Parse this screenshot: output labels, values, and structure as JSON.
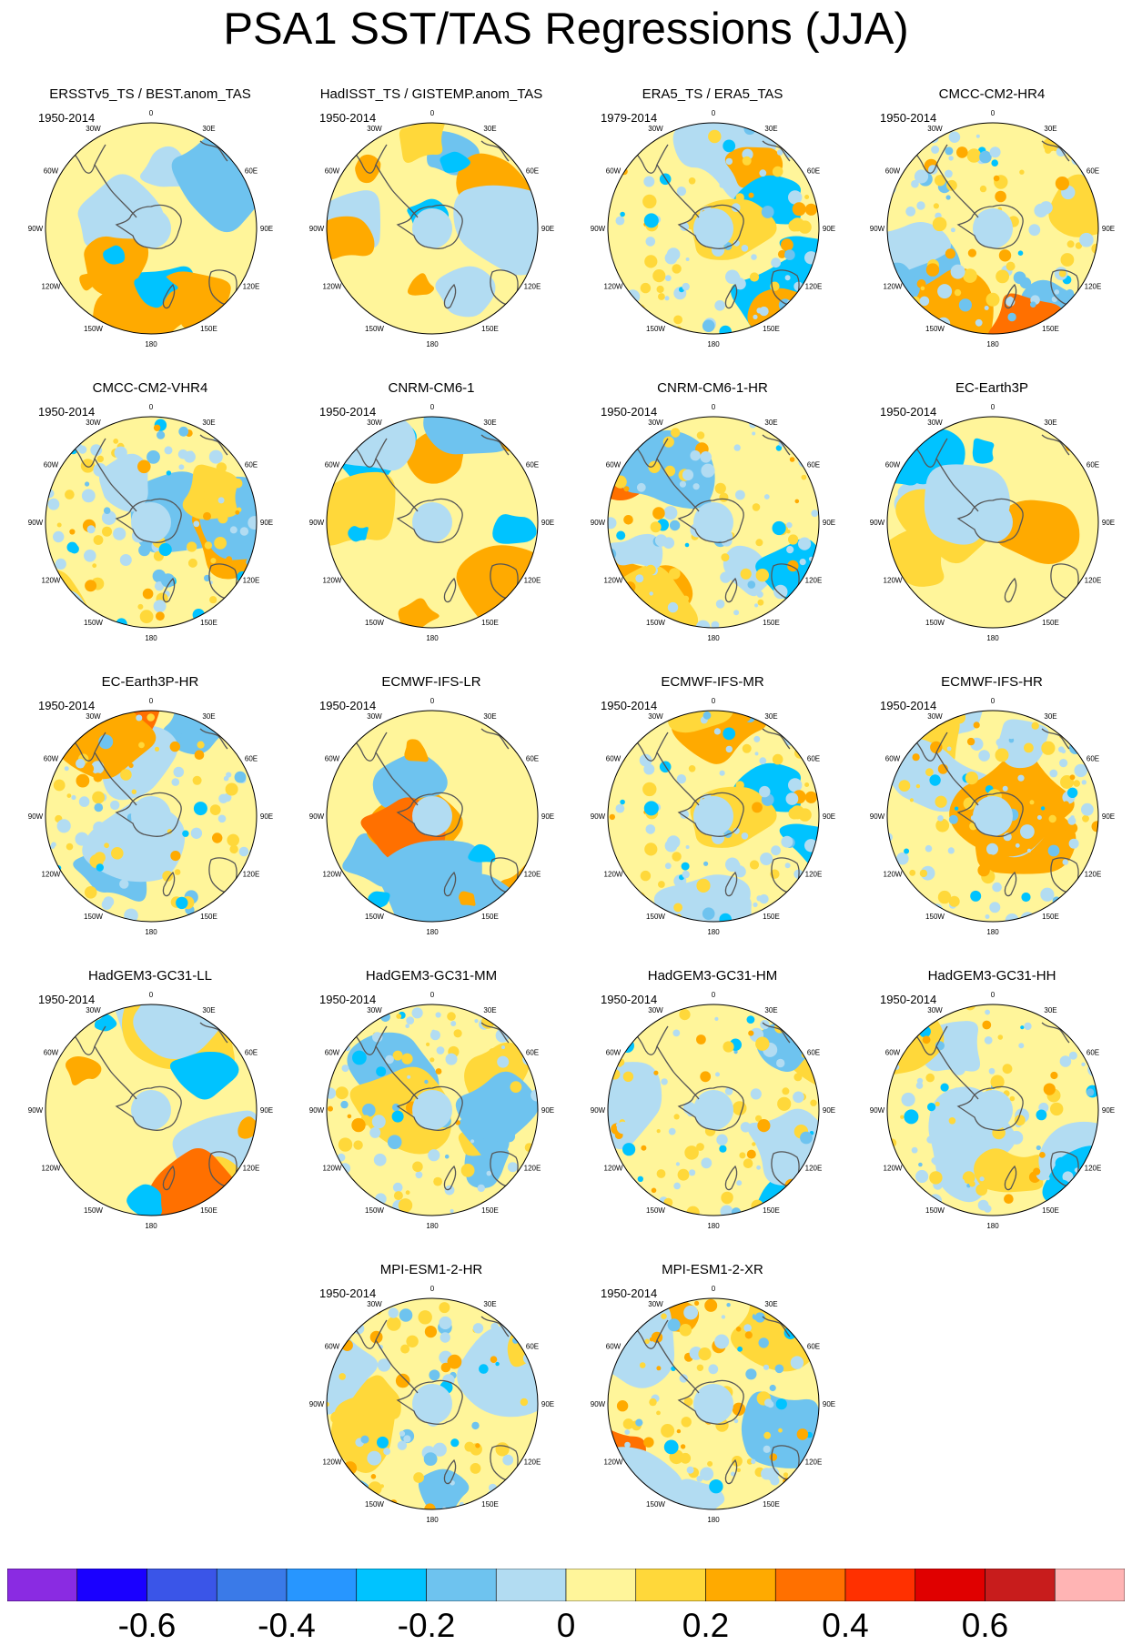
{
  "title": "PSA1 SST/TAS Regressions (JJA)",
  "longitude_labels": [
    "0",
    "30E",
    "60E",
    "90E",
    "120E",
    "150E",
    "180",
    "150W",
    "120W",
    "90W",
    "60W",
    "30W"
  ],
  "panels": [
    {
      "title": "ERSSTv5_TS / BEST.anom_TAS",
      "period": "1950-2014",
      "style": "smooth"
    },
    {
      "title": "HadISST_TS / GISTEMP.anom_TAS",
      "period": "1950-2014",
      "style": "smooth"
    },
    {
      "title": "ERA5_TS / ERA5_TAS",
      "period": "1979-2014",
      "style": "noisy"
    },
    {
      "title": "CMCC-CM2-HR4",
      "period": "1950-2014",
      "style": "noisy"
    },
    {
      "title": "CMCC-CM2-VHR4",
      "period": "1950-2014",
      "style": "noisy"
    },
    {
      "title": "CNRM-CM6-1",
      "period": "1950-2014",
      "style": "smooth"
    },
    {
      "title": "CNRM-CM6-1-HR",
      "period": "1950-2014",
      "style": "noisy"
    },
    {
      "title": "EC-Earth3P",
      "period": "1950-2014",
      "style": "smooth"
    },
    {
      "title": "EC-Earth3P-HR",
      "period": "1950-2014",
      "style": "noisy"
    },
    {
      "title": "ECMWF-IFS-LR",
      "period": "1950-2014",
      "style": "smooth"
    },
    {
      "title": "ECMWF-IFS-MR",
      "period": "1950-2014",
      "style": "noisy"
    },
    {
      "title": "ECMWF-IFS-HR",
      "period": "1950-2014",
      "style": "noisy"
    },
    {
      "title": "HadGEM3-GC31-LL",
      "period": "1950-2014",
      "style": "smooth"
    },
    {
      "title": "HadGEM3-GC31-MM",
      "period": "1950-2014",
      "style": "noisy"
    },
    {
      "title": "HadGEM3-GC31-HM",
      "period": "1950-2014",
      "style": "noisy"
    },
    {
      "title": "HadGEM3-GC31-HH",
      "period": "1950-2014",
      "style": "noisy"
    },
    {
      "title": "MPI-ESM1-2-HR",
      "period": "1950-2014",
      "style": "noisy"
    },
    {
      "title": "MPI-ESM1-2-XR",
      "period": "1950-2014",
      "style": "noisy"
    }
  ],
  "colorbar": {
    "colors": [
      "#8a2be2",
      "#1a00ff",
      "#3a55e8",
      "#3a7ae8",
      "#2796ff",
      "#00c3ff",
      "#6ec3ef",
      "#b2dcf2",
      "#fff59a",
      "#ffd83a",
      "#ffaa00",
      "#ff7000",
      "#ff3000",
      "#e00000",
      "#c81c1c",
      "#ffb4b4"
    ],
    "tick_labels": [
      "-0.6",
      "-0.4",
      "-0.2",
      "0",
      "0.2",
      "0.4",
      "0.6"
    ]
  }
}
